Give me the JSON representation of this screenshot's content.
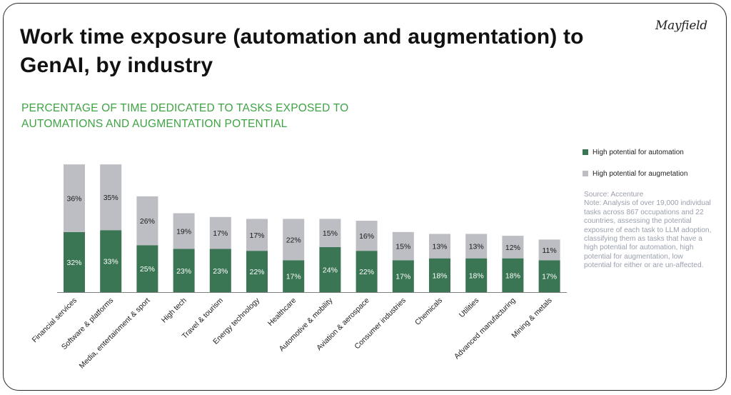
{
  "header": {
    "title": "Work time exposure (automation and augmentation) to GenAI, by industry",
    "logo_text": "Mayfield",
    "subtitle": "PERCENTAGE OF TIME DEDICATED TO TASKS EXPOSED TO AUTOMATIONS AND AUGMENTATION POTENTIAL"
  },
  "legend": {
    "automation": "High potential for automation",
    "augmentation": "High potential for augmetation"
  },
  "note": {
    "source": "Source: Accenture",
    "text": "Note: Analysis of over 19,000 individual tasks across 867 occupations and 22 countries, assessing the potential exposure of each task to LLM adoption, classifying them as tasks that have a high potential for automation, high potential for augmentation, low potential for either or are un-affected."
  },
  "colors": {
    "automation": "#3a7554",
    "augmentation": "#bcbec4",
    "subtitle": "#3ea343"
  },
  "chart_data": {
    "type": "bar",
    "stacked": true,
    "categories": [
      "Financial services",
      "Software & platforms",
      "Media, entertainment & sport",
      "High tech",
      "Travel & tourism",
      "Energy technology",
      "Healthcare",
      "Automotive & mobility",
      "Aviation & aerospace",
      "Consumer industries",
      "Chemicals",
      "Utilities",
      "Advanced manufacturing",
      "Mining & metals"
    ],
    "series": [
      {
        "name": "High potential for automation",
        "values": [
          32,
          33,
          25,
          23,
          23,
          22,
          17,
          24,
          22,
          17,
          18,
          18,
          18,
          17
        ]
      },
      {
        "name": "High potential for augmetation",
        "values": [
          36,
          35,
          26,
          19,
          17,
          17,
          22,
          15,
          16,
          15,
          13,
          13,
          12,
          11
        ]
      }
    ],
    "value_suffix": "%",
    "legend_position": "right",
    "grid": false
  }
}
